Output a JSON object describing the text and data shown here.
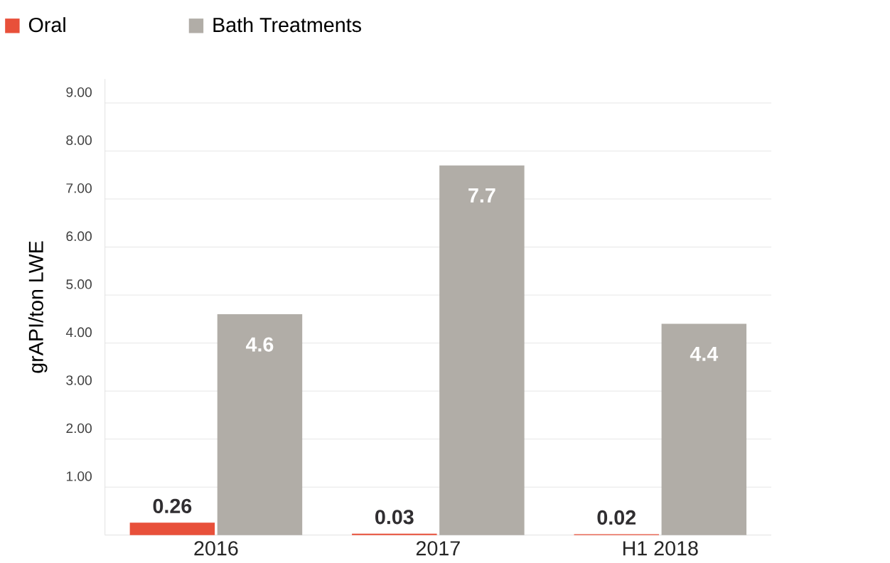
{
  "chart_data": {
    "type": "bar",
    "ylabel": "grAPI/ton LWE",
    "categories": [
      "2016",
      "2017",
      "H1 2018"
    ],
    "series": [
      {
        "name": "Oral",
        "color": "#e8503a",
        "values": [
          0.26,
          0.03,
          0.02
        ]
      },
      {
        "name": "Bath Treatments",
        "color": "#b1ada7",
        "values": [
          4.6,
          7.7,
          4.4
        ]
      }
    ],
    "ylim": [
      0,
      9.5
    ],
    "yticks": [
      {
        "value": 1,
        "label": "1.00"
      },
      {
        "value": 2,
        "label": "2.00"
      },
      {
        "value": 3,
        "label": "3.00"
      },
      {
        "value": 4,
        "label": "4.00"
      },
      {
        "value": 5,
        "label": "5.00"
      },
      {
        "value": 6,
        "label": "6.00"
      },
      {
        "value": 7,
        "label": "7.00"
      },
      {
        "value": 8,
        "label": "8.00"
      },
      {
        "value": 9,
        "label": "9.00"
      }
    ],
    "grid": "y",
    "legend": "top left",
    "data_labels": true
  }
}
